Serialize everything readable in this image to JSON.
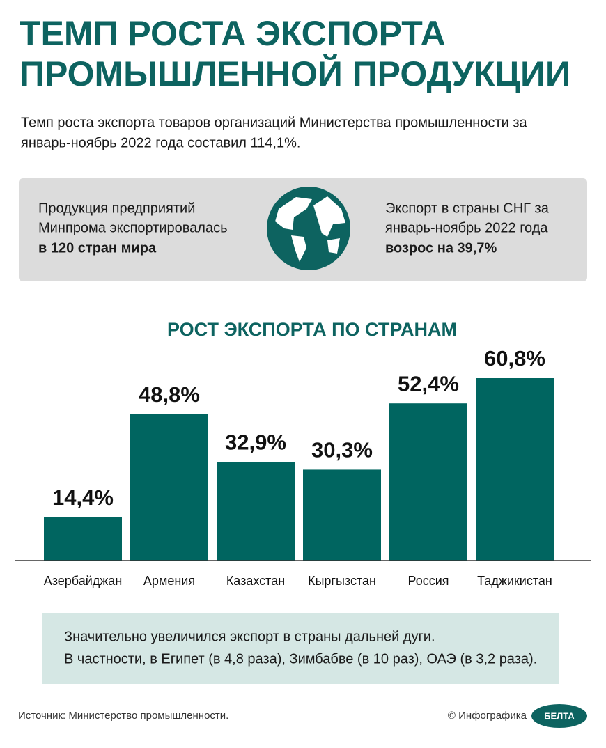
{
  "header": {
    "title_lines": [
      "ТЕМП РОСТА ЭКСПОРТА",
      "ПРОМЫШЛЕННОЙ ПРОДУКЦИИ"
    ],
    "intro_lines": [
      "Темп роста экспорта товаров организаций Министерства промышленности за",
      "январь-ноябрь 2022 года составил 114,1%."
    ]
  },
  "panel": {
    "left_lines": [
      "Продукция предприятий",
      "Минпрома экспортировалась"
    ],
    "left_bold": "в 120 стран мира",
    "right_lines": [
      "Экспорт в страны СНГ за",
      "январь-ноябрь 2022 года"
    ],
    "right_bold": "возрос на 39,7%"
  },
  "chart_data": {
    "type": "bar",
    "title": "РОСТ ЭКСПОРТА ПО СТРАНАМ",
    "categories": [
      "Азербайджан",
      "Армения",
      "Казахстан",
      "Кыргызстан",
      "Россия",
      "Таджикистан"
    ],
    "values": [
      14.4,
      48.8,
      32.9,
      30.3,
      52.4,
      60.8
    ],
    "value_labels": [
      "14,4%",
      "48,8%",
      "32,9%",
      "30,3%",
      "52,4%",
      "60,8%"
    ],
    "color": "#006560"
  },
  "note": {
    "lines": [
      "Значительно увеличился экспорт в страны дальней дуги.",
      "В частности, в Египет (в 4,8 раза), Зимбабве (в 10 раз), ОАЭ (в 3,2 раза)."
    ]
  },
  "footer": {
    "source": "Источник: Министерство промышленности.",
    "credit": "© Инфографика",
    "logo": "БЕЛТА"
  }
}
